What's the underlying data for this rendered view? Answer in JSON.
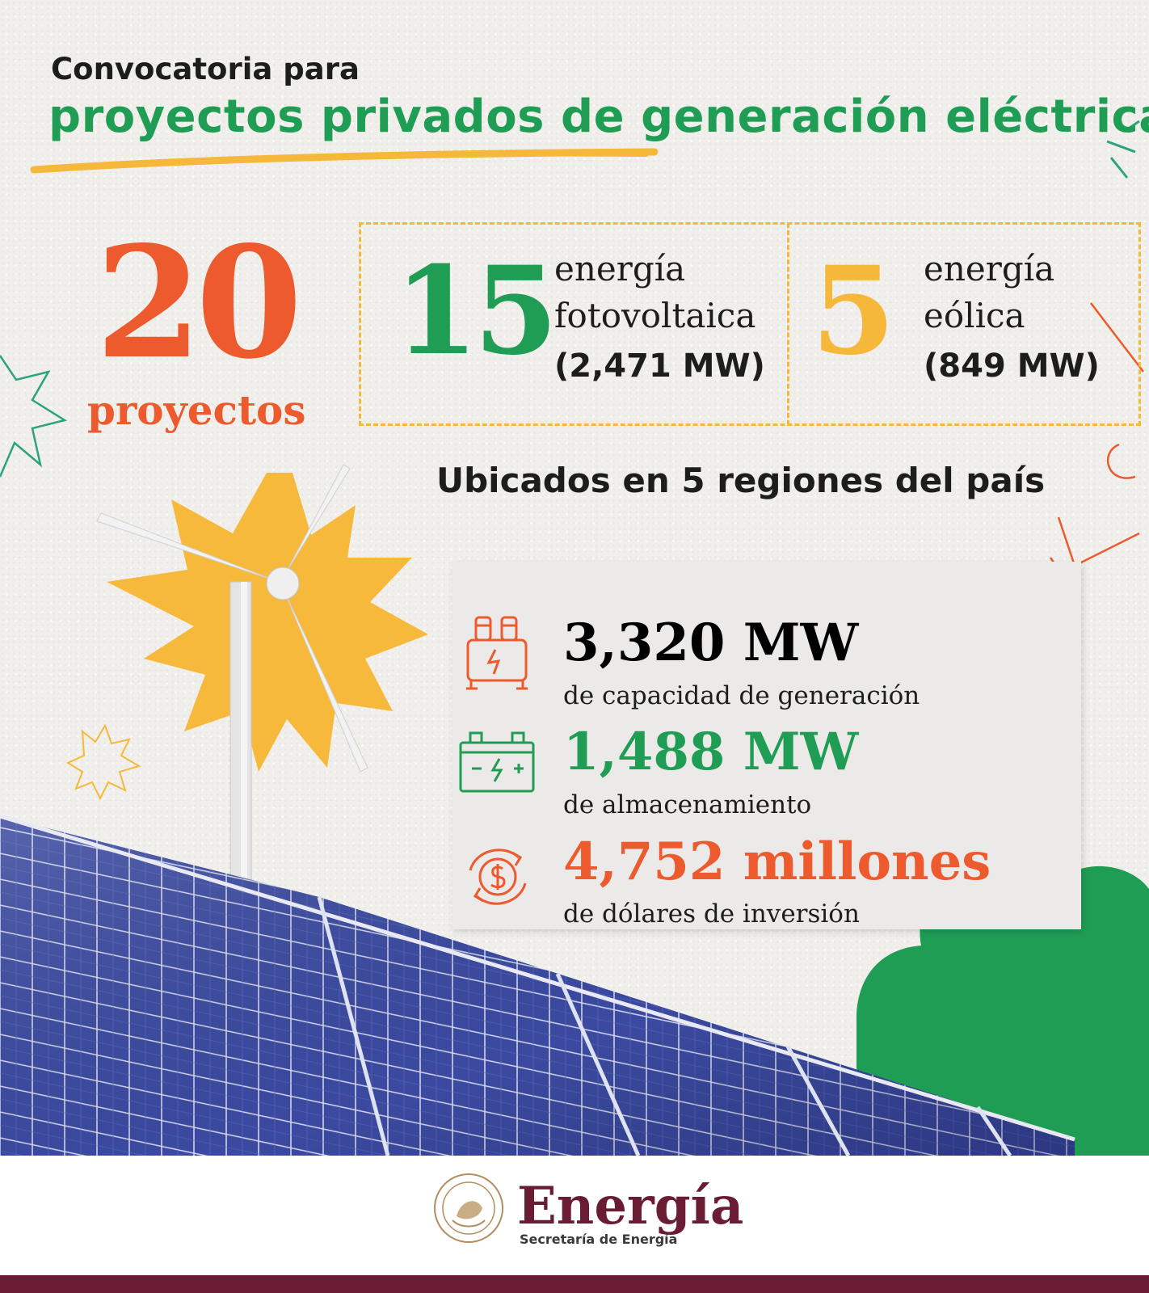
{
  "header": {
    "line1": "Convocatoria para",
    "line2": "proyectos privados de generación eléctrica"
  },
  "summary": {
    "total_number": "20",
    "total_label": "proyectos",
    "solar": {
      "number": "15",
      "label_line1": "energía",
      "label_line2": "fotovoltaica",
      "capacity": "(2,471 MW)"
    },
    "wind": {
      "number": "5",
      "label_line1": "energía",
      "label_line2": "eólica",
      "capacity": "(849 MW)"
    },
    "regions_text": "Ubicados en 5 regiones del país"
  },
  "stats": [
    {
      "value": "3,320 MW",
      "description": "de capacidad de generación",
      "icon": "transformer-icon",
      "color": "#ec5a2e"
    },
    {
      "value": "1,488 MW",
      "description": "de almacenamiento",
      "icon": "battery-icon",
      "color": "#1f9d55"
    },
    {
      "value": "4,752 millones",
      "description": "de dólares de inversión",
      "icon": "dollar-cycle-icon",
      "color": "#ec5a2e"
    }
  ],
  "footer": {
    "brand": "Energía",
    "subtitle": "Secretaría de Energía"
  },
  "colors": {
    "orange": "#ec5a2e",
    "green": "#1f9d55",
    "yellow": "#f5b83a",
    "maroon": "#691c32"
  }
}
